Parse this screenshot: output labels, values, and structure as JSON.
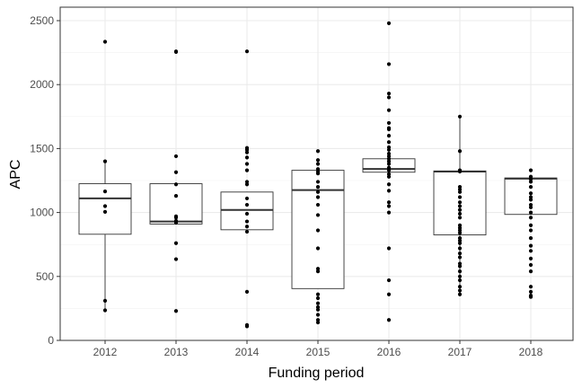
{
  "chart_data": {
    "type": "box",
    "title": "",
    "xlabel": "Funding period",
    "ylabel": "APC",
    "ylim": [
      0,
      2600
    ],
    "yticks": [
      0,
      500,
      1000,
      1500,
      2000,
      2500
    ],
    "categories": [
      "2012",
      "2013",
      "2014",
      "2015",
      "2016",
      "2017",
      "2018"
    ],
    "boxes": [
      {
        "category": "2012",
        "q1": 830,
        "median": 1110,
        "q3": 1225,
        "whisker_low": 240,
        "whisker_high": 1400
      },
      {
        "category": "2013",
        "q1": 910,
        "median": 930,
        "q3": 1225,
        "whisker_low": 910,
        "whisker_high": 1225
      },
      {
        "category": "2014",
        "q1": 865,
        "median": 1020,
        "q3": 1160,
        "whisker_low": 865,
        "whisker_high": 1160
      },
      {
        "category": "2015",
        "q1": 405,
        "median": 1175,
        "q3": 1330,
        "whisker_low": 405,
        "whisker_high": 1330
      },
      {
        "category": "2016",
        "q1": 1315,
        "median": 1340,
        "q3": 1420,
        "whisker_low": 1315,
        "whisker_high": 1420
      },
      {
        "category": "2017",
        "q1": 825,
        "median": 1320,
        "q3": 1325,
        "whisker_low": 370,
        "whisker_high": 1750
      },
      {
        "category": "2018",
        "q1": 985,
        "median": 1265,
        "q3": 1270,
        "whisker_low": 985,
        "whisker_high": 1270
      }
    ],
    "points": [
      {
        "category": "2012",
        "values": [
          2335,
          1400,
          1165,
          1050,
          1005,
          310,
          235
        ]
      },
      {
        "category": "2013",
        "values": [
          2260,
          2255,
          1440,
          1315,
          1220,
          1130,
          970,
          960,
          935,
          920,
          760,
          635,
          230
        ]
      },
      {
        "category": "2014",
        "values": [
          2260,
          1505,
          1490,
          1470,
          1430,
          1380,
          1330,
          1240,
          1220,
          1110,
          1060,
          990,
          930,
          890,
          850,
          380,
          120,
          110
        ]
      },
      {
        "category": "2015",
        "values": [
          1480,
          1410,
          1380,
          1340,
          1320,
          1305,
          1240,
          1200,
          1160,
          1120,
          1060,
          980,
          860,
          720,
          560,
          540,
          360,
          330,
          290,
          260,
          240,
          200,
          160,
          140
        ]
      },
      {
        "category": "2016",
        "values": [
          2480,
          2160,
          1930,
          1900,
          1800,
          1700,
          1660,
          1650,
          1600,
          1550,
          1510,
          1490,
          1460,
          1440,
          1420,
          1400,
          1380,
          1350,
          1330,
          1300,
          1280,
          1220,
          1170,
          1080,
          1050,
          1000,
          720,
          470,
          360,
          160
        ]
      },
      {
        "category": "2017",
        "values": [
          1750,
          1480,
          1330,
          1320,
          1200,
          1180,
          1160,
          1120,
          1080,
          1050,
          1020,
          990,
          960,
          900,
          880,
          860,
          840,
          800,
          780,
          760,
          720,
          680,
          650,
          600,
          580,
          540,
          500,
          470,
          420,
          390,
          360
        ]
      },
      {
        "category": "2018",
        "values": [
          1330,
          1280,
          1260,
          1240,
          1200,
          1150,
          1120,
          1100,
          1060,
          1040,
          1000,
          960,
          900,
          860,
          800,
          740,
          700,
          640,
          590,
          540,
          420,
          380,
          350,
          340
        ]
      }
    ]
  }
}
